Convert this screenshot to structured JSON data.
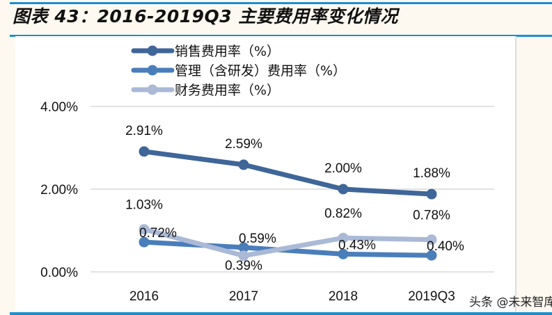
{
  "title": "图表 43：2016-2019Q3 主要费用率变化情况",
  "watermark": "头条 @未来智库",
  "chart_data": {
    "type": "line",
    "title": "图表 43：2016-2019Q3 主要费用率变化情况",
    "categories": [
      "2016",
      "2017",
      "2018",
      "2019Q3"
    ],
    "ylim": [
      0,
      4
    ],
    "yticks": [
      "0.00%",
      "2.00%",
      "4.00%"
    ],
    "ytick_values": [
      0,
      2,
      4
    ],
    "grid": true,
    "legend_position": "top",
    "series": [
      {
        "name": "销售费用率（%）",
        "values": [
          2.91,
          2.59,
          2.0,
          1.88
        ],
        "labels": [
          "2.91%",
          "2.59%",
          "2.00%",
          "1.88%"
        ],
        "color": "#3f6699"
      },
      {
        "name": "管理（含研发）费用率（%）",
        "values": [
          0.72,
          0.59,
          0.43,
          0.4
        ],
        "labels": [
          "0.72%",
          "0.59%",
          "0.43%",
          "0.40%"
        ],
        "color": "#4a7ebb"
      },
      {
        "name": "财务费用率（%）",
        "values": [
          1.03,
          0.39,
          0.82,
          0.78
        ],
        "labels": [
          "1.03%",
          "0.39%",
          "0.82%",
          "0.78%"
        ],
        "color": "#aab9d6"
      }
    ]
  }
}
